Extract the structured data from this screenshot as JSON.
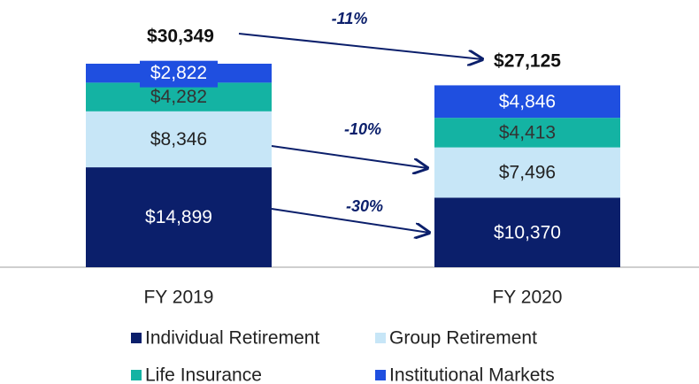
{
  "chart_data": {
    "type": "stacked_bar",
    "categories": [
      "FY 2019",
      "FY 2020"
    ],
    "series": [
      {
        "name": "Individual Retirement",
        "color": "#0b1f6b",
        "values": [
          14899,
          10370
        ],
        "value_labels": [
          "$14,899",
          "$10,370"
        ]
      },
      {
        "name": "Group Retirement",
        "color": "#c7e6f7",
        "values": [
          8346,
          7496
        ],
        "value_labels": [
          "$8,346",
          "$7,496"
        ]
      },
      {
        "name": "Life Insurance",
        "color": "#14b3a3",
        "values": [
          4282,
          4413
        ],
        "value_labels": [
          "$4,282",
          "$4,413"
        ]
      },
      {
        "name": "Institutional Markets",
        "color": "#1f4fe0",
        "values": [
          2822,
          4846
        ],
        "value_labels": [
          "$2,822",
          "$4,846"
        ]
      }
    ],
    "totals": [
      30349,
      27125
    ],
    "total_labels": [
      "$30,349",
      "$27,125"
    ],
    "annotations": [
      "-11%",
      "-10%",
      "-30%"
    ],
    "legend": "bottom"
  }
}
